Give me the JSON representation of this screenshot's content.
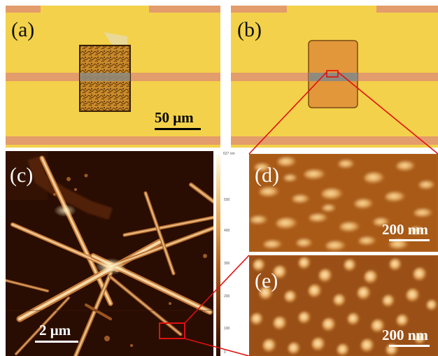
{
  "panels": {
    "a": {
      "label": "(a)",
      "scalebar": "50 μm"
    },
    "b": {
      "label": "(b)"
    },
    "c": {
      "label": "(c)",
      "scalebar": "2 μm"
    },
    "d": {
      "label": "(d)",
      "scalebar": "200 nm"
    },
    "e": {
      "label": "(e)",
      "scalebar": "200 nm"
    }
  },
  "colorbar": {
    "labels": [
      "627 nm",
      "500",
      "400",
      "300",
      "200",
      "100",
      "0"
    ]
  },
  "colors": {
    "optical_background": "#f2cf46",
    "electrode": "#e59b68",
    "afm_dark": "#2a0d02",
    "afm_bright": "#fff6c8",
    "annotation_red": "#e01010"
  }
}
